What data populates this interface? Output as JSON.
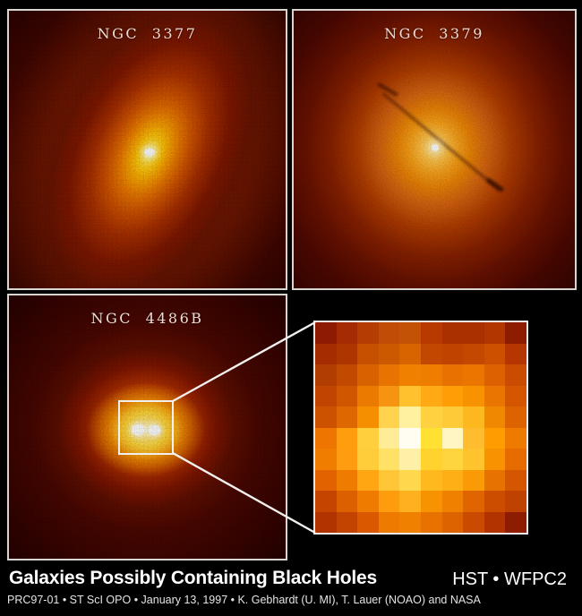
{
  "poster": {
    "panels": [
      {
        "title": "NGC 3377"
      },
      {
        "title": "NGC 3379"
      },
      {
        "title": "NGC 4486B"
      }
    ],
    "inset": {
      "pixels": [
        [
          "#8e1a02",
          "#a52b02",
          "#b53c02",
          "#c04c06",
          "#c45206",
          "#b83a00",
          "#ab3000",
          "#ab3000",
          "#b23600",
          "#8e1c00"
        ],
        [
          "#a42c00",
          "#ae3400",
          "#c65000",
          "#cc5800",
          "#d86400",
          "#c24700",
          "#bf4400",
          "#c44900",
          "#cc5000",
          "#b53600"
        ],
        [
          "#b23d00",
          "#c24a00",
          "#d86200",
          "#e87300",
          "#ef8000",
          "#ef7e00",
          "#e87100",
          "#ea7600",
          "#dd6100",
          "#c94c00"
        ],
        [
          "#c04500",
          "#d05700",
          "#ea7a00",
          "#f69310",
          "#ffc22e",
          "#ffaa14",
          "#ff9d06",
          "#f89200",
          "#ea7500",
          "#d45700"
        ],
        [
          "#cc5200",
          "#dd6700",
          "#f68f00",
          "#ffd34e",
          "#fff1a0",
          "#ffd040",
          "#ffca38",
          "#fcb81e",
          "#f08800",
          "#dd6300"
        ],
        [
          "#ee7500",
          "#ff9d0e",
          "#ffcf3d",
          "#ffec96",
          "#fffdf2",
          "#ffe133",
          "#fff6c4",
          "#ffbc2e",
          "#ff9c00",
          "#ef7a00"
        ],
        [
          "#f07c00",
          "#ff9c10",
          "#ffcc3a",
          "#ffe165",
          "#fff0a8",
          "#ffd22e",
          "#ffd53f",
          "#ffc32e",
          "#f89200",
          "#e66c00"
        ],
        [
          "#e26200",
          "#ef7c00",
          "#ffa612",
          "#ffc637",
          "#ffd84e",
          "#ffb81e",
          "#ffaf16",
          "#fa9a06",
          "#e87200",
          "#d45600"
        ],
        [
          "#c54400",
          "#dd6000",
          "#ef7c00",
          "#ff9c0e",
          "#ffb01e",
          "#f79200",
          "#ef8000",
          "#e06400",
          "#cc4c00",
          "#c04200"
        ],
        [
          "#b03300",
          "#c34400",
          "#d95800",
          "#ee7a00",
          "#f08000",
          "#e87200",
          "#dd6300",
          "#c94a00",
          "#b23300",
          "#8e1c00"
        ]
      ]
    },
    "caption": {
      "title": "Galaxies Possibly Containing Black Holes",
      "instrument": "HST • WFPC2",
      "credit": "PRC97-01 • ST ScI OPO • January 13, 1997 • K. Gebhardt (U. MI), T. Lauer (NOAO) and NASA"
    },
    "colors": {
      "background": "#000000",
      "panel_border": "#d8d4d0",
      "callout_line": "#f2f0ee",
      "caption_text": "#ffffff",
      "panel_label_text": "#efdcd4",
      "glow_core": "#ffffff",
      "glow_inner": "#ffd040",
      "glow_mid": "#ec8406",
      "glow_outer": "#872000"
    }
  }
}
